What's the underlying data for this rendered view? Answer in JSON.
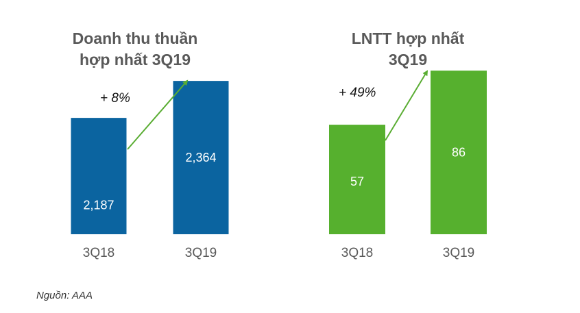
{
  "chart_data": [
    {
      "type": "bar",
      "title": [
        "Doanh thu thuần",
        "hợp nhất 3Q19"
      ],
      "categories": [
        "3Q18",
        "3Q19"
      ],
      "values": [
        2187,
        2364
      ],
      "value_labels": [
        "2,187",
        "2,364"
      ],
      "annotation": "+ 8%",
      "color": "#0b64a0",
      "arrow_color": "#5aad33",
      "grid": false
    },
    {
      "type": "bar",
      "title": [
        "LNTT hợp nhất",
        "3Q19"
      ],
      "categories": [
        "3Q18",
        "3Q19"
      ],
      "values": [
        57,
        86
      ],
      "value_labels": [
        "57",
        "86"
      ],
      "annotation": "+ 49%",
      "color": "#56b02e",
      "arrow_color": "#5aad33",
      "grid": false
    }
  ],
  "source": "Nguồn: AAA"
}
